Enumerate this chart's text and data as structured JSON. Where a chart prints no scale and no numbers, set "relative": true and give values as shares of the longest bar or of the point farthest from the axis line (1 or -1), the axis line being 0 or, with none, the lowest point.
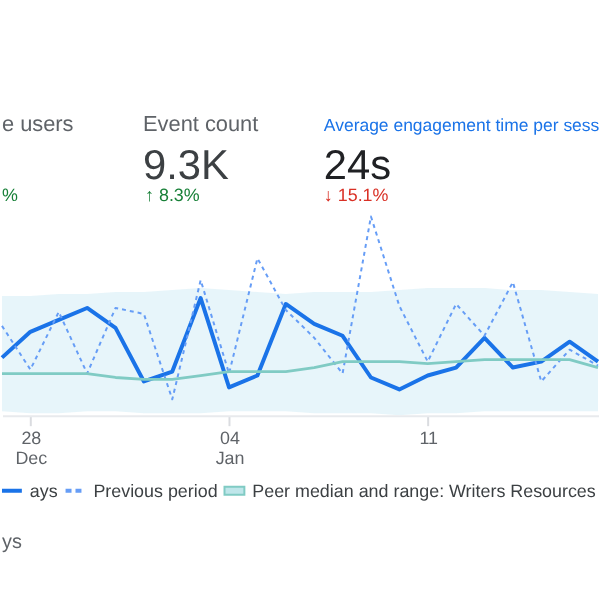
{
  "chart_data": {
    "type": "line",
    "relative": true,
    "legend": "bottom",
    "categories": [
      null,
      "28\nDec",
      null,
      null,
      null,
      null,
      null,
      null,
      "04\nJan",
      null,
      null,
      null,
      null,
      null,
      null,
      "11",
      null,
      null,
      null,
      null,
      null,
      null
    ],
    "series": [
      {
        "name": "ays",
        "color": "#1a73e8",
        "line_style": "solid",
        "values": [
          0.29,
          0.42,
          0.48,
          0.54,
          0.44,
          0.17,
          0.22,
          0.59,
          0.14,
          0.2,
          0.56,
          0.46,
          0.4,
          0.19,
          0.13,
          0.2,
          0.24,
          0.39,
          0.24,
          0.27,
          0.37,
          0.27
        ]
      },
      {
        "name": "Previous period",
        "color": "#669df6",
        "line_style": "dotted",
        "values": [
          0.45,
          0.23,
          0.52,
          0.21,
          0.54,
          0.51,
          0.08,
          0.68,
          0.21,
          0.79,
          0.53,
          0.39,
          0.21,
          1,
          0.55,
          0.27,
          0.56,
          0.4,
          0.67,
          0.17,
          0.33,
          0.25
        ]
      },
      {
        "name": "Peer median and range: Writers Resources",
        "color": "#80cbc4",
        "line_style": "solid",
        "values": [
          0.21,
          0.21,
          0.21,
          0.21,
          0.19,
          0.18,
          0.18,
          0.2,
          0.22,
          0.22,
          0.22,
          0.24,
          0.27,
          0.27,
          0.27,
          0.26,
          0.27,
          0.28,
          0.28,
          0.28,
          0.28,
          0.24
        ],
        "lower": [
          0.02,
          0.01,
          0.01,
          0.02,
          0.02,
          0.01,
          0.01,
          0.01,
          0.02,
          0.02,
          0.02,
          0.01,
          0.01,
          0.01,
          0.0,
          0.01,
          0.01,
          0.02,
          0.02,
          0.02,
          0.02,
          0.02
        ],
        "upper": [
          0.6,
          0.6,
          0.61,
          0.61,
          0.62,
          0.62,
          0.63,
          0.64,
          0.63,
          0.62,
          0.61,
          0.62,
          0.62,
          0.62,
          0.63,
          0.64,
          0.64,
          0.64,
          0.63,
          0.63,
          0.62,
          0.61
        ]
      }
    ],
    "annotations": [
      "e users",
      "%",
      "Event count",
      "9.3K",
      "↑ 8.3%",
      "Average engagement time per sess",
      "24s",
      "↓ 15.1%",
      "ys"
    ]
  }
}
